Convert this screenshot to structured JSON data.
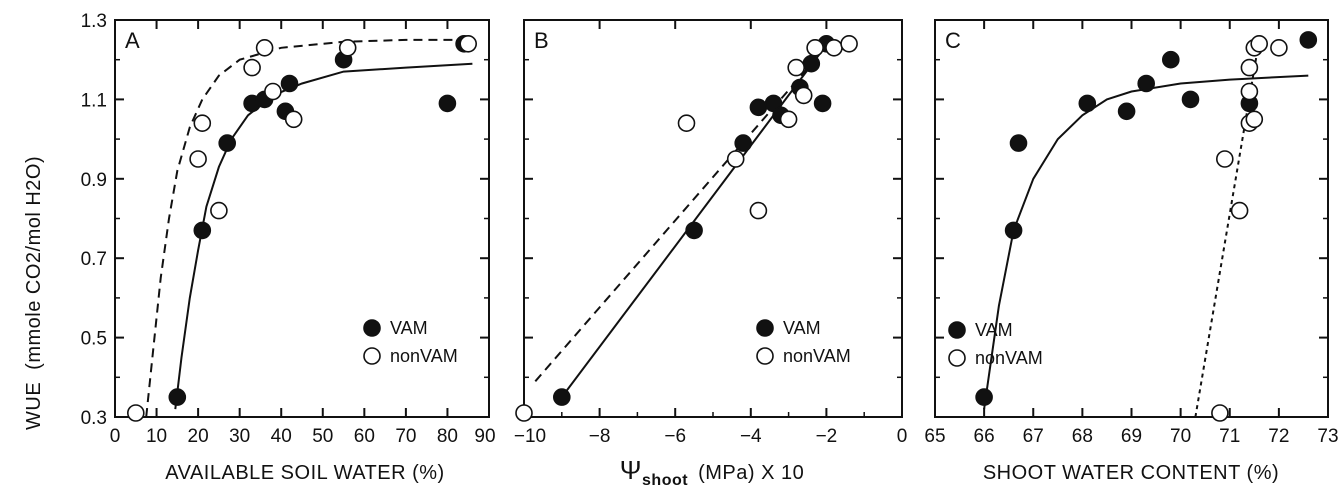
{
  "figure": {
    "ylabel_main": "WUE",
    "ylabel_unit": "(mmole CO2/mol H2O)",
    "ylim": [
      0.3,
      1.3
    ],
    "yticks": [
      "0.3",
      "0.5",
      "0.7",
      "0.9",
      "1.1",
      "1.3"
    ],
    "colors": {
      "ink": "#111111",
      "paper": "#ffffff"
    }
  },
  "chart_data": [
    {
      "type": "scatter",
      "panel": "A",
      "xlabel": "AVAILABLE SOIL WATER (%)",
      "xlim": [
        0,
        90
      ],
      "xticks": [
        "0",
        "10",
        "20",
        "30",
        "40",
        "50",
        "60",
        "70",
        "80",
        "90"
      ],
      "ylim": [
        0.3,
        1.3
      ],
      "legend": {
        "position": "bottom-right",
        "entries": [
          "VAM",
          "nonVAM"
        ]
      },
      "series": [
        {
          "name": "VAM",
          "marker": "filled-circle",
          "fit": "solid",
          "points": [
            [
              15,
              0.35
            ],
            [
              21,
              0.77
            ],
            [
              27,
              0.99
            ],
            [
              33,
              1.09
            ],
            [
              36,
              1.1
            ],
            [
              41,
              1.07
            ],
            [
              42,
              1.14
            ],
            [
              55,
              1.2
            ],
            [
              80,
              1.09
            ],
            [
              84,
              1.24
            ]
          ],
          "fit_curve": [
            [
              14.5,
              0.32
            ],
            [
              16,
              0.45
            ],
            [
              18,
              0.6
            ],
            [
              20,
              0.72
            ],
            [
              22,
              0.83
            ],
            [
              25,
              0.93
            ],
            [
              28,
              1.0
            ],
            [
              32,
              1.06
            ],
            [
              38,
              1.11
            ],
            [
              45,
              1.14
            ],
            [
              55,
              1.17
            ],
            [
              70,
              1.18
            ],
            [
              86,
              1.19
            ]
          ]
        },
        {
          "name": "nonVAM",
          "marker": "open-circle",
          "fit": "dashed",
          "points": [
            [
              5,
              0.31
            ],
            [
              20,
              0.95
            ],
            [
              21,
              1.04
            ],
            [
              25,
              0.82
            ],
            [
              33,
              1.18
            ],
            [
              36,
              1.23
            ],
            [
              38,
              1.12
            ],
            [
              43,
              1.05
            ],
            [
              56,
              1.23
            ],
            [
              85,
              1.24
            ]
          ],
          "fit_curve": [
            [
              7.5,
              0.3
            ],
            [
              9,
              0.45
            ],
            [
              11,
              0.65
            ],
            [
              13,
              0.8
            ],
            [
              15,
              0.92
            ],
            [
              18,
              1.03
            ],
            [
              21,
              1.1
            ],
            [
              25,
              1.16
            ],
            [
              30,
              1.2
            ],
            [
              40,
              1.23
            ],
            [
              55,
              1.245
            ],
            [
              70,
              1.25
            ],
            [
              86,
              1.25
            ]
          ]
        }
      ]
    },
    {
      "type": "scatter",
      "panel": "B",
      "xlabel_symbol": "Ψ",
      "xlabel_sub": "shoot",
      "xlabel_rest": "(MPa) X 10",
      "xlim": [
        -10,
        0
      ],
      "xticks": [
        "−10",
        "−8",
        "−6",
        "−4",
        "−2",
        "0"
      ],
      "ylim": [
        0.3,
        1.3
      ],
      "legend": {
        "position": "bottom-right",
        "entries": [
          "VAM",
          "nonVAM"
        ]
      },
      "series": [
        {
          "name": "VAM",
          "marker": "filled-circle",
          "fit": "solid",
          "points": [
            [
              -9,
              0.35
            ],
            [
              -5.5,
              0.77
            ],
            [
              -4.2,
              0.99
            ],
            [
              -3.8,
              1.08
            ],
            [
              -3.4,
              1.09
            ],
            [
              -3.2,
              1.06
            ],
            [
              -2.7,
              1.13
            ],
            [
              -2.4,
              1.19
            ],
            [
              -2.1,
              1.09
            ],
            [
              -2.0,
              1.24
            ]
          ],
          "fit_curve": [
            [
              -9.0,
              0.35
            ],
            [
              -1.9,
              1.25
            ]
          ]
        },
        {
          "name": "nonVAM",
          "marker": "open-circle",
          "fit": "dashed",
          "points": [
            [
              -10,
              0.31
            ],
            [
              -5.7,
              1.04
            ],
            [
              -4.4,
              0.95
            ],
            [
              -3.8,
              0.82
            ],
            [
              -3.0,
              1.05
            ],
            [
              -2.8,
              1.18
            ],
            [
              -2.6,
              1.11
            ],
            [
              -2.3,
              1.23
            ],
            [
              -1.8,
              1.23
            ],
            [
              -1.4,
              1.24
            ]
          ],
          "fit_curve": [
            [
              -9.7,
              0.39
            ],
            [
              -2.3,
              1.2
            ]
          ]
        }
      ]
    },
    {
      "type": "scatter",
      "panel": "C",
      "xlabel": "SHOOT WATER CONTENT (%)",
      "xlim": [
        65,
        73
      ],
      "xticks": [
        "65",
        "66",
        "67",
        "68",
        "69",
        "70",
        "71",
        "72",
        "73"
      ],
      "ylim": [
        0.3,
        1.3
      ],
      "legend": {
        "position": "bottom-left",
        "entries": [
          "VAM",
          "nonVAM"
        ]
      },
      "series": [
        {
          "name": "VAM",
          "marker": "filled-circle",
          "fit": "solid",
          "points": [
            [
              66.0,
              0.35
            ],
            [
              66.6,
              0.77
            ],
            [
              66.7,
              0.99
            ],
            [
              68.1,
              1.09
            ],
            [
              68.9,
              1.07
            ],
            [
              69.3,
              1.14
            ],
            [
              69.8,
              1.2
            ],
            [
              70.2,
              1.1
            ],
            [
              71.4,
              1.09
            ],
            [
              72.6,
              1.25
            ]
          ],
          "fit_curve": [
            [
              66.0,
              0.32
            ],
            [
              66.3,
              0.58
            ],
            [
              66.6,
              0.77
            ],
            [
              67.0,
              0.9
            ],
            [
              67.5,
              1.0
            ],
            [
              68.0,
              1.06
            ],
            [
              68.5,
              1.1
            ],
            [
              69.0,
              1.12
            ],
            [
              70.0,
              1.14
            ],
            [
              71.0,
              1.15
            ],
            [
              72.6,
              1.16
            ]
          ]
        },
        {
          "name": "nonVAM",
          "marker": "open-circle",
          "fit": "dashed",
          "points": [
            [
              70.8,
              0.31
            ],
            [
              70.9,
              0.95
            ],
            [
              71.2,
              0.82
            ],
            [
              71.4,
              1.04
            ],
            [
              71.4,
              1.12
            ],
            [
              71.4,
              1.18
            ],
            [
              71.5,
              1.05
            ],
            [
              71.5,
              1.23
            ],
            [
              71.6,
              1.24
            ],
            [
              72.0,
              1.23
            ]
          ],
          "fit_curve": [
            [
              70.3,
              0.3
            ],
            [
              71.6,
              1.25
            ]
          ]
        }
      ]
    }
  ]
}
